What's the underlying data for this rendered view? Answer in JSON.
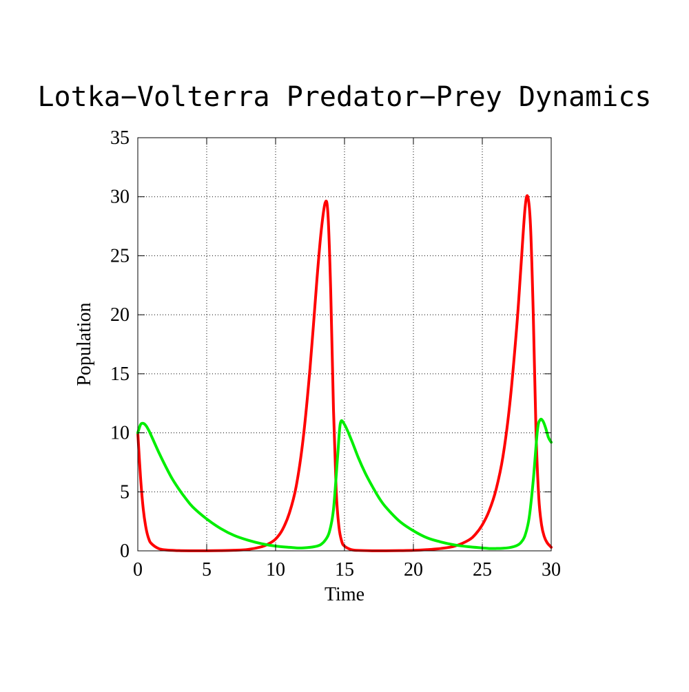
{
  "chart_data": {
    "type": "line",
    "title": "Lotka−Volterra Predator−Prey Dynamics",
    "xlabel": "Time",
    "ylabel": "Population",
    "xlim": [
      0,
      30
    ],
    "ylim": [
      0,
      35
    ],
    "xticks": [
      "0",
      "5",
      "10",
      "15",
      "20",
      "25",
      "30"
    ],
    "yticks": [
      "0",
      "5",
      "10",
      "15",
      "20",
      "25",
      "30",
      "35"
    ],
    "grid": true,
    "legend": "none",
    "colors": {
      "prey": "#ff0000",
      "predator": "#00ee00",
      "axis": "#000000",
      "grid": "#000000"
    },
    "series": [
      {
        "color": "#ff0000",
        "x": [
          0,
          0.2,
          0.4,
          0.6,
          0.8,
          1.0,
          1.5,
          2.0,
          3.0,
          4.0,
          5.0,
          6.0,
          7.0,
          8.0,
          9.0,
          9.5,
          10.0,
          10.5,
          11.0,
          11.5,
          12.0,
          12.5,
          13.0,
          13.3,
          13.6,
          13.8,
          14.0,
          14.2,
          14.4,
          14.6,
          14.8,
          15.0,
          15.5,
          16.0,
          17.0,
          18.0,
          19.0,
          20.0,
          21.0,
          22.0,
          23.0,
          24.0,
          24.5,
          25.0,
          25.5,
          26.0,
          26.5,
          27.0,
          27.5,
          27.8,
          28.1,
          28.3,
          28.5,
          28.7,
          28.9,
          29.1,
          29.3,
          29.5,
          29.7,
          30.0
        ],
        "y": [
          10,
          6.2,
          3.5,
          1.9,
          1.0,
          0.6,
          0.2,
          0.08,
          0.02,
          0.01,
          0.01,
          0.02,
          0.05,
          0.12,
          0.35,
          0.6,
          1.0,
          1.8,
          3.2,
          5.5,
          9.5,
          15.5,
          23.0,
          27.0,
          29.5,
          28.5,
          22.0,
          12.0,
          5.0,
          2.0,
          0.8,
          0.4,
          0.1,
          0.04,
          0.01,
          0.01,
          0.02,
          0.04,
          0.1,
          0.2,
          0.4,
          0.9,
          1.4,
          2.2,
          3.4,
          5.2,
          8.0,
          12.5,
          19.0,
          24.0,
          29.0,
          30.0,
          27.5,
          20.0,
          10.0,
          4.5,
          2.2,
          1.2,
          0.7,
          0.3
        ]
      },
      {
        "color": "#00ee00",
        "x": [
          0,
          0.2,
          0.4,
          0.6,
          0.8,
          1.0,
          1.5,
          2.0,
          2.5,
          3.0,
          3.5,
          4.0,
          5.0,
          6.0,
          7.0,
          8.0,
          9.0,
          10.0,
          11.0,
          11.5,
          12.0,
          12.5,
          13.0,
          13.3,
          13.6,
          13.9,
          14.2,
          14.5,
          14.7,
          15.0,
          15.5,
          16.0,
          16.5,
          17.0,
          17.5,
          18.0,
          19.0,
          20.0,
          21.0,
          22.0,
          23.0,
          24.0,
          25.0,
          25.5,
          26.0,
          26.5,
          27.0,
          27.5,
          27.8,
          28.1,
          28.4,
          28.7,
          29.0,
          29.2,
          29.4,
          29.6,
          29.8,
          30.0
        ],
        "y": [
          10,
          10.7,
          10.8,
          10.6,
          10.2,
          9.7,
          8.4,
          7.2,
          6.1,
          5.2,
          4.4,
          3.7,
          2.7,
          1.9,
          1.3,
          0.9,
          0.6,
          0.4,
          0.3,
          0.25,
          0.25,
          0.3,
          0.4,
          0.55,
          0.9,
          1.6,
          3.5,
          8.0,
          10.8,
          10.7,
          9.4,
          7.9,
          6.6,
          5.5,
          4.5,
          3.7,
          2.5,
          1.7,
          1.1,
          0.75,
          0.5,
          0.35,
          0.25,
          0.2,
          0.2,
          0.22,
          0.28,
          0.45,
          0.7,
          1.3,
          2.8,
          6.0,
          10.2,
          11.1,
          11.0,
          10.4,
          9.6,
          9.2
        ]
      }
    ]
  }
}
